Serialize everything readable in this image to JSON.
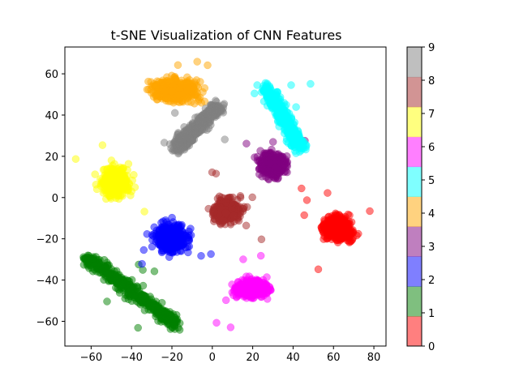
{
  "chart_data": {
    "type": "scatter",
    "title": "t-SNE Visualization of CNN Features",
    "xlabel": "",
    "ylabel": "",
    "xlim": [
      -73,
      86
    ],
    "ylim": [
      -72,
      73
    ],
    "x_ticks": [
      "−60",
      "−40",
      "−20",
      "0",
      "20",
      "40",
      "60",
      "80"
    ],
    "x_tick_values": [
      -60,
      -40,
      -20,
      0,
      20,
      40,
      60,
      80
    ],
    "y_ticks": [
      "−60",
      "−40",
      "−20",
      "0",
      "20",
      "40",
      "60"
    ],
    "y_tick_values": [
      -60,
      -40,
      -20,
      0,
      20,
      40,
      60
    ],
    "grid": false,
    "colorbar": {
      "ticks": [
        "0",
        "1",
        "2",
        "3",
        "4",
        "5",
        "6",
        "7",
        "8",
        "9"
      ],
      "range": [
        0,
        9
      ],
      "colors": [
        "#ff0000",
        "#008000",
        "#0000ff",
        "#800080",
        "#ffa500",
        "#00ffff",
        "#ff00ff",
        "#ffff00",
        "#a52a2a",
        "#808080"
      ]
    },
    "marker_alpha": 0.5,
    "series": [
      {
        "class": 0,
        "color": "#ff0000",
        "shape": "blob",
        "cx": 62,
        "cy": -15,
        "sx": 7,
        "sy": 5
      },
      {
        "class": 1,
        "color": "#008000",
        "shape": "strip",
        "from": [
          -62,
          -29
        ],
        "to": [
          -17,
          -62
        ],
        "width": 4
      },
      {
        "class": 2,
        "color": "#0000ff",
        "shape": "blob",
        "cx": -20,
        "cy": -20,
        "sx": 7,
        "sy": 6
      },
      {
        "class": 3,
        "color": "#800080",
        "shape": "blob",
        "cx": 30,
        "cy": 16,
        "sx": 6,
        "sy": 5
      },
      {
        "class": 4,
        "color": "#ffa500",
        "shape": "blob",
        "cx": -18,
        "cy": 52,
        "sx": 10,
        "sy": 5
      },
      {
        "class": 5,
        "color": "#00ffff",
        "shape": "strip",
        "from": [
          27,
          53
        ],
        "to": [
          44,
          24
        ],
        "width": 4
      },
      {
        "class": 6,
        "color": "#ff00ff",
        "shape": "blob",
        "cx": 20,
        "cy": -44,
        "sx": 7,
        "sy": 4
      },
      {
        "class": 7,
        "color": "#ffff00",
        "shape": "blob",
        "cx": -48,
        "cy": 8,
        "sx": 6,
        "sy": 6
      },
      {
        "class": 8,
        "color": "#a52a2a",
        "shape": "blob",
        "cx": 7,
        "cy": -6,
        "sx": 6,
        "sy": 5
      },
      {
        "class": 9,
        "color": "#808080",
        "shape": "strip",
        "from": [
          -18,
          24
        ],
        "to": [
          3,
          44
        ],
        "width": 4
      }
    ]
  }
}
